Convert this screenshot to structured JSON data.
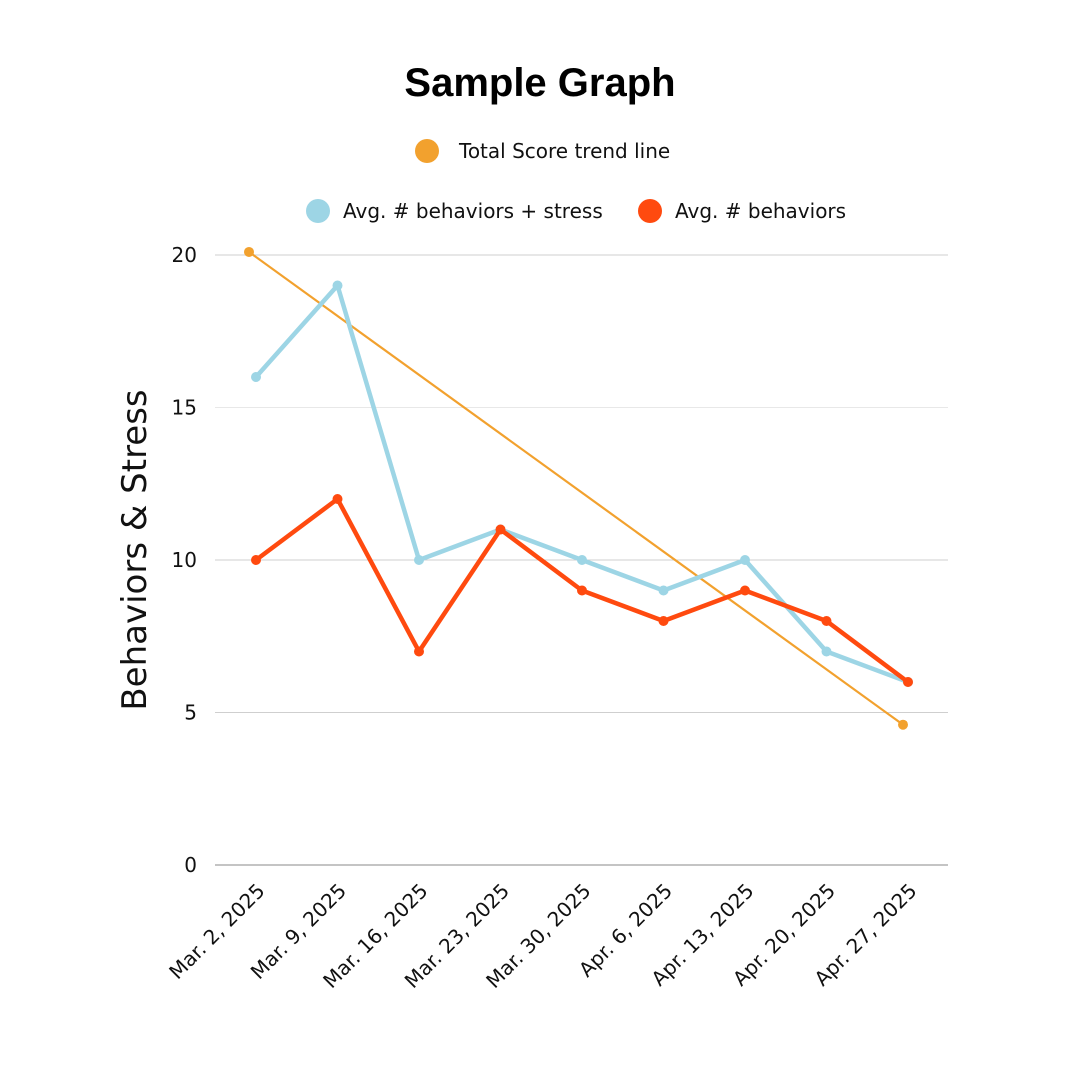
{
  "chart_data": {
    "type": "line",
    "title": "Sample Graph",
    "xlabel": "",
    "ylabel": "Behaviors & Stress",
    "categories": [
      "Mar. 2, 2025",
      "Mar. 9, 2025",
      "Mar. 16, 2025",
      "Mar. 23, 2025",
      "Mar. 30, 2025",
      "Apr. 6, 2025",
      "Apr. 13, 2025",
      "Apr. 20, 2025",
      "Apr. 27, 2025"
    ],
    "ylim": [
      0,
      20
    ],
    "yticks": [
      "0",
      "5",
      "10",
      "15",
      "20"
    ],
    "grid": true,
    "legend_position": "top",
    "trend": {
      "name": "Total Score trend line",
      "color": "#F2A12E",
      "start": 20.1,
      "end": 4.6
    },
    "series": [
      {
        "name": "Avg. # behaviors + stress",
        "color": "#9DD5E5",
        "values": [
          16,
          19,
          10,
          11,
          10,
          9,
          10,
          7,
          6
        ]
      },
      {
        "name": "Avg. # behaviors",
        "color": "#FF4A0F",
        "values": [
          10,
          12,
          7,
          11,
          9,
          8,
          9,
          8,
          6
        ]
      }
    ]
  }
}
